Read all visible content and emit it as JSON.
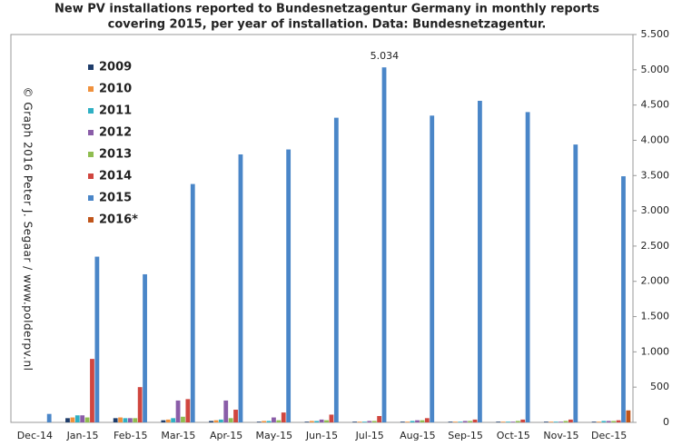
{
  "chart_data": {
    "type": "bar",
    "title": "New PV installations reported to Bundesnetzagentur Germany in monthly reports",
    "subtitle": "covering 2015, per year of installation. Data: Bundesnetzagentur.",
    "annotation": "© Graph 2016 Peter J. Segaar / www.polderpv.nl",
    "categories": [
      "Dec-14",
      "Jan-15",
      "Feb-15",
      "Mar-15",
      "Apr-15",
      "May-15",
      "Jun-15",
      "Jul-15",
      "Aug-15",
      "Sep-15",
      "Oct-15",
      "Nov-15",
      "Dec-15"
    ],
    "series": [
      {
        "name": "2009",
        "color": "#1f3d6b",
        "values": [
          0,
          60,
          60,
          30,
          20,
          10,
          10,
          10,
          10,
          10,
          10,
          10,
          10
        ]
      },
      {
        "name": "2010",
        "color": "#f0913c",
        "values": [
          0,
          70,
          70,
          40,
          30,
          20,
          20,
          10,
          10,
          10,
          10,
          10,
          10
        ]
      },
      {
        "name": "2011",
        "color": "#2fb0c4",
        "values": [
          0,
          100,
          60,
          60,
          40,
          20,
          20,
          10,
          20,
          10,
          10,
          10,
          20
        ]
      },
      {
        "name": "2012",
        "color": "#8a5da8",
        "values": [
          0,
          100,
          60,
          310,
          310,
          70,
          40,
          20,
          30,
          20,
          10,
          10,
          20
        ]
      },
      {
        "name": "2013",
        "color": "#8fbd50",
        "values": [
          0,
          70,
          60,
          80,
          60,
          30,
          30,
          20,
          30,
          20,
          20,
          20,
          20
        ]
      },
      {
        "name": "2014",
        "color": "#d0463f",
        "values": [
          0,
          900,
          500,
          330,
          180,
          140,
          110,
          90,
          60,
          40,
          40,
          40,
          30
        ]
      },
      {
        "name": "2015",
        "color": "#4a86c8",
        "values": [
          120,
          2350,
          2100,
          3380,
          3800,
          3870,
          4320,
          5034,
          4350,
          4560,
          4400,
          3940,
          3490
        ],
        "value_labels": [
          null,
          null,
          null,
          null,
          null,
          null,
          null,
          "5.034",
          null,
          null,
          null,
          null,
          null
        ]
      },
      {
        "name": "2016*",
        "color": "#c0551a",
        "values": [
          0,
          0,
          0,
          0,
          0,
          0,
          0,
          0,
          0,
          0,
          0,
          0,
          170
        ]
      }
    ],
    "ylim": [
      0,
      5500
    ],
    "yticks": [
      0,
      500,
      {
        "value": 1000,
        "label": "1.000"
      },
      {
        "value": 1500,
        "label": "1.500"
      },
      {
        "value": 2000,
        "label": "2.000"
      },
      {
        "value": 2500,
        "label": "2.500"
      },
      {
        "value": 3000,
        "label": "3.000"
      },
      {
        "value": 3500,
        "label": "3.500"
      },
      {
        "value": 4000,
        "label": "4.000"
      },
      {
        "value": 4500,
        "label": "4.500"
      },
      {
        "value": 5000,
        "label": "5.000"
      },
      {
        "value": 5500,
        "label": "5.500"
      }
    ],
    "yaxis_side": "right",
    "grid": false,
    "legend": "upper left"
  }
}
